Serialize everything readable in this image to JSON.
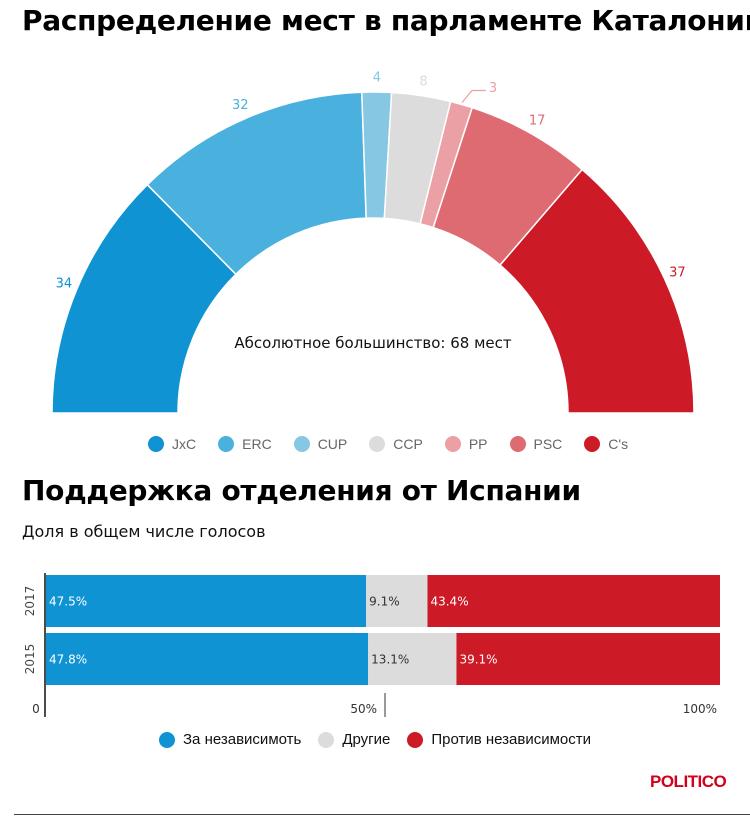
{
  "chart_data": [
    {
      "type": "pie",
      "variant": "semicircle",
      "title": "Распределение мест в парламенте Каталонии",
      "center_label": "Абсолютное большинство: 68 мест",
      "series": [
        {
          "name": "JxC",
          "value": 34,
          "label": "34",
          "color": "#0f93d2"
        },
        {
          "name": "ERC",
          "value": 32,
          "label": "32",
          "color": "#4ab0dd"
        },
        {
          "name": "CUP",
          "value": 4,
          "label": "4",
          "color": "#86c7e3"
        },
        {
          "name": "CCP",
          "value": 8,
          "label": "8",
          "color": "#dcdcdc"
        },
        {
          "name": "PP",
          "value": 3,
          "label": "3",
          "color": "#eba0a5"
        },
        {
          "name": "PSC",
          "value": 17,
          "label": "17",
          "color": "#de6b72"
        },
        {
          "name": "C's",
          "value": 37,
          "label": "37",
          "color": "#cc1a26"
        }
      ]
    },
    {
      "type": "bar",
      "orientation": "horizontal",
      "stacked": true,
      "title": "Поддержка отделения от Испании",
      "subtitle": "Доля в общем числе голосов",
      "categories": [
        "2017",
        "2015"
      ],
      "series": [
        {
          "name": "За независимоть",
          "color": "#0f93d2",
          "values": [
            47.5,
            47.8
          ],
          "labels": [
            "47.5%",
            "47.8%"
          ]
        },
        {
          "name": "Другие",
          "color": "#dcdcdc",
          "values": [
            9.1,
            13.1
          ],
          "labels": [
            "9.1%",
            "13.1%"
          ]
        },
        {
          "name": "Против независимости",
          "color": "#cc1a26",
          "values": [
            43.4,
            39.1
          ],
          "labels": [
            "43.4%",
            "39.1%"
          ]
        }
      ],
      "xlim": [
        0,
        100
      ],
      "x_ticks": [
        {
          "value": 0,
          "label": "0"
        },
        {
          "value": 50,
          "label": "50%"
        },
        {
          "value": 100,
          "label": "100%"
        }
      ]
    }
  ],
  "legend1": [
    {
      "name": "JxC",
      "color": "#0f93d2"
    },
    {
      "name": "ERC",
      "color": "#4ab0dd"
    },
    {
      "name": "CUP",
      "color": "#86c7e3"
    },
    {
      "name": "CCP",
      "color": "#dcdcdc"
    },
    {
      "name": "PP",
      "color": "#eba0a5"
    },
    {
      "name": "PSC",
      "color": "#de6b72"
    },
    {
      "name": "C's",
      "color": "#cc1a26"
    }
  ],
  "legend2": [
    {
      "name": "За независимоть",
      "color": "#0f93d2"
    },
    {
      "name": "Другие",
      "color": "#dcdcdc"
    },
    {
      "name": "Против независимости",
      "color": "#cc1a26"
    }
  ],
  "brand": "POLITICO"
}
